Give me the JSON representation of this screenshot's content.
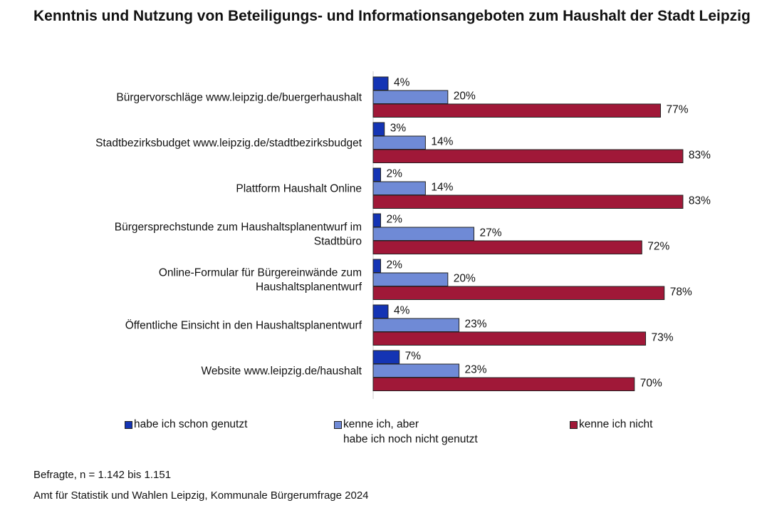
{
  "chart_data": {
    "type": "bar",
    "orientation": "horizontal",
    "title": "Kenntnis und Nutzung von Beteiligungs- und Informationsangeboten zum Haushalt der Stadt Leipzig",
    "categories": [
      [
        "Bürgervorschläge www.leipzig.de/buergerhaushalt"
      ],
      [
        "Stadtbezirksbudget www.leipzig.de/stadtbezirksbudget"
      ],
      [
        "Plattform Haushalt Online"
      ],
      [
        "Bürgersprechstunde zum Haushaltsplanentwurf im",
        "Stadtbüro"
      ],
      [
        "Online-Formular für Bürgereinwände zum",
        "Haushaltsplanentwurf"
      ],
      [
        "Öffentliche Einsicht in den Haushaltsplanentwurf"
      ],
      [
        "Website www.leipzig.de/haushalt"
      ]
    ],
    "series": [
      {
        "name": "habe ich schon genutzt",
        "legend": [
          "habe ich schon genutzt"
        ],
        "color": "#1434b4",
        "values": [
          4,
          3,
          2,
          2,
          2,
          4,
          7
        ]
      },
      {
        "name": "kenne ich, aber habe ich noch nicht genutzt",
        "legend": [
          "kenne ich, aber",
          "habe ich noch nicht genutzt"
        ],
        "color": "#6f8ad6",
        "values": [
          20,
          14,
          14,
          27,
          20,
          23,
          23
        ]
      },
      {
        "name": "kenne ich nicht",
        "legend": [
          "kenne ich nicht"
        ],
        "color": "#a01838",
        "values": [
          77,
          83,
          83,
          72,
          78,
          73,
          70
        ]
      }
    ],
    "value_suffix": "%",
    "xlim": [
      0,
      100
    ],
    "grid": false,
    "legend_position": "bottom"
  },
  "footer": {
    "note": "Befragte, n = 1.142 bis 1.151",
    "source": "Amt für Statistik und Wahlen Leipzig, Kommunale Bürgerumfrage 2024"
  }
}
